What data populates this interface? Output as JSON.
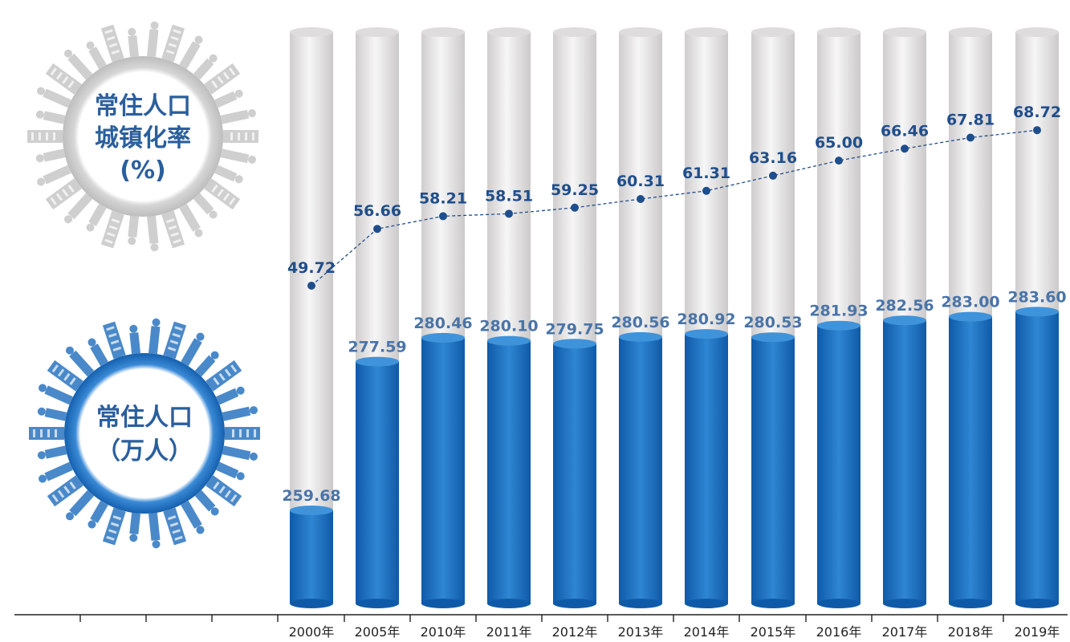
{
  "badges": {
    "rate": {
      "line1": "常住人口",
      "line2": "城镇化率",
      "line3": "(%)"
    },
    "population": {
      "line1": "常住人口",
      "line2": "（万人）"
    }
  },
  "colors": {
    "bar_fill": "#1f6fbd",
    "bar_top": "#3b8ed6",
    "cylinder_bg": "#e6e4e4",
    "line": "#1f4e8c",
    "badge_gray": "#c9c9c9",
    "badge_blue": "#1f6fbd"
  },
  "chart_data": {
    "type": "bar",
    "categories": [
      "2000年",
      "2005年",
      "2010年",
      "2011年",
      "2012年",
      "2013年",
      "2014年",
      "2015年",
      "2016年",
      "2017年",
      "2018年",
      "2019年"
    ],
    "series": [
      {
        "type": "bar",
        "values": [
          259.68,
          277.59,
          280.46,
          280.1,
          279.75,
          280.56,
          280.92,
          280.53,
          281.93,
          282.56,
          283.0,
          283.6
        ],
        "labels": [
          "259.68",
          "277.59",
          "280.46",
          "280.10",
          "279.75",
          "280.56",
          "280.92",
          "280.53",
          "281.93",
          "282.56",
          "283.00",
          "283.60"
        ]
      },
      {
        "type": "line",
        "values": [
          49.72,
          56.66,
          58.21,
          58.51,
          59.25,
          60.31,
          61.31,
          63.16,
          65.0,
          66.46,
          67.81,
          68.72
        ],
        "labels": [
          "49.72",
          "56.66",
          "58.21",
          "58.51",
          "59.25",
          "60.31",
          "61.31",
          "63.16",
          "65.00",
          "66.46",
          "67.81",
          "68.72"
        ]
      }
    ],
    "grid": false
  }
}
